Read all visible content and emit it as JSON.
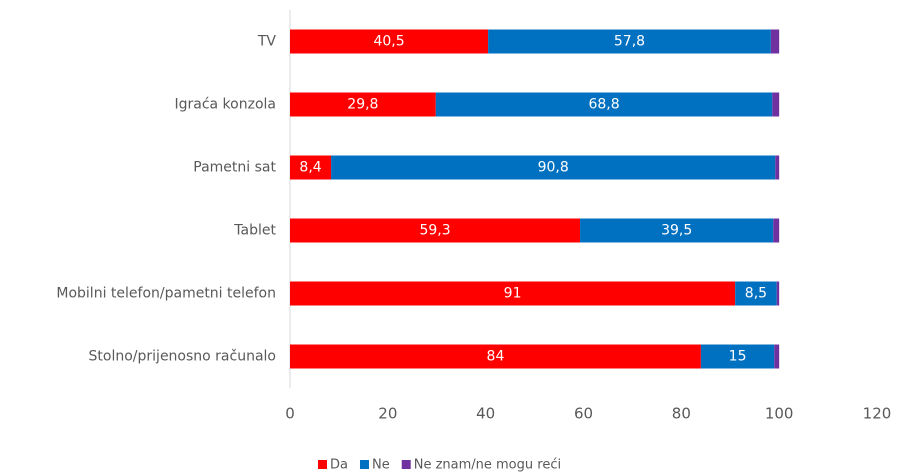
{
  "chart_data": {
    "type": "stacked-barh",
    "categories": [
      "TV",
      "Igraća konzola",
      "Pametni sat",
      "Tablet",
      "Mobilni telefon/pametni telefon",
      "Stolno/prijenosno računalo"
    ],
    "series": [
      {
        "name": "Da",
        "color": "#ff0000",
        "values": [
          40.5,
          29.8,
          8.4,
          59.3,
          91,
          84
        ],
        "value_labels": [
          "40,5",
          "29,8",
          "8,4",
          "59,3",
          "91",
          "84"
        ]
      },
      {
        "name": "Ne",
        "color": "#0070c0",
        "values": [
          57.8,
          68.8,
          90.8,
          39.5,
          8.5,
          15
        ],
        "value_labels": [
          "57,8",
          "68,8",
          "90,8",
          "39,5",
          "8,5",
          "15"
        ]
      },
      {
        "name": "Ne znam/ne mogu reći",
        "color": "#7030a0",
        "values": [
          1.7,
          1.4,
          0.8,
          1.2,
          0.5,
          1.0
        ]
      }
    ],
    "xlim": [
      0,
      120
    ],
    "xticks": [
      0,
      20,
      40,
      60,
      80,
      100,
      120
    ],
    "legend": "bottom"
  }
}
